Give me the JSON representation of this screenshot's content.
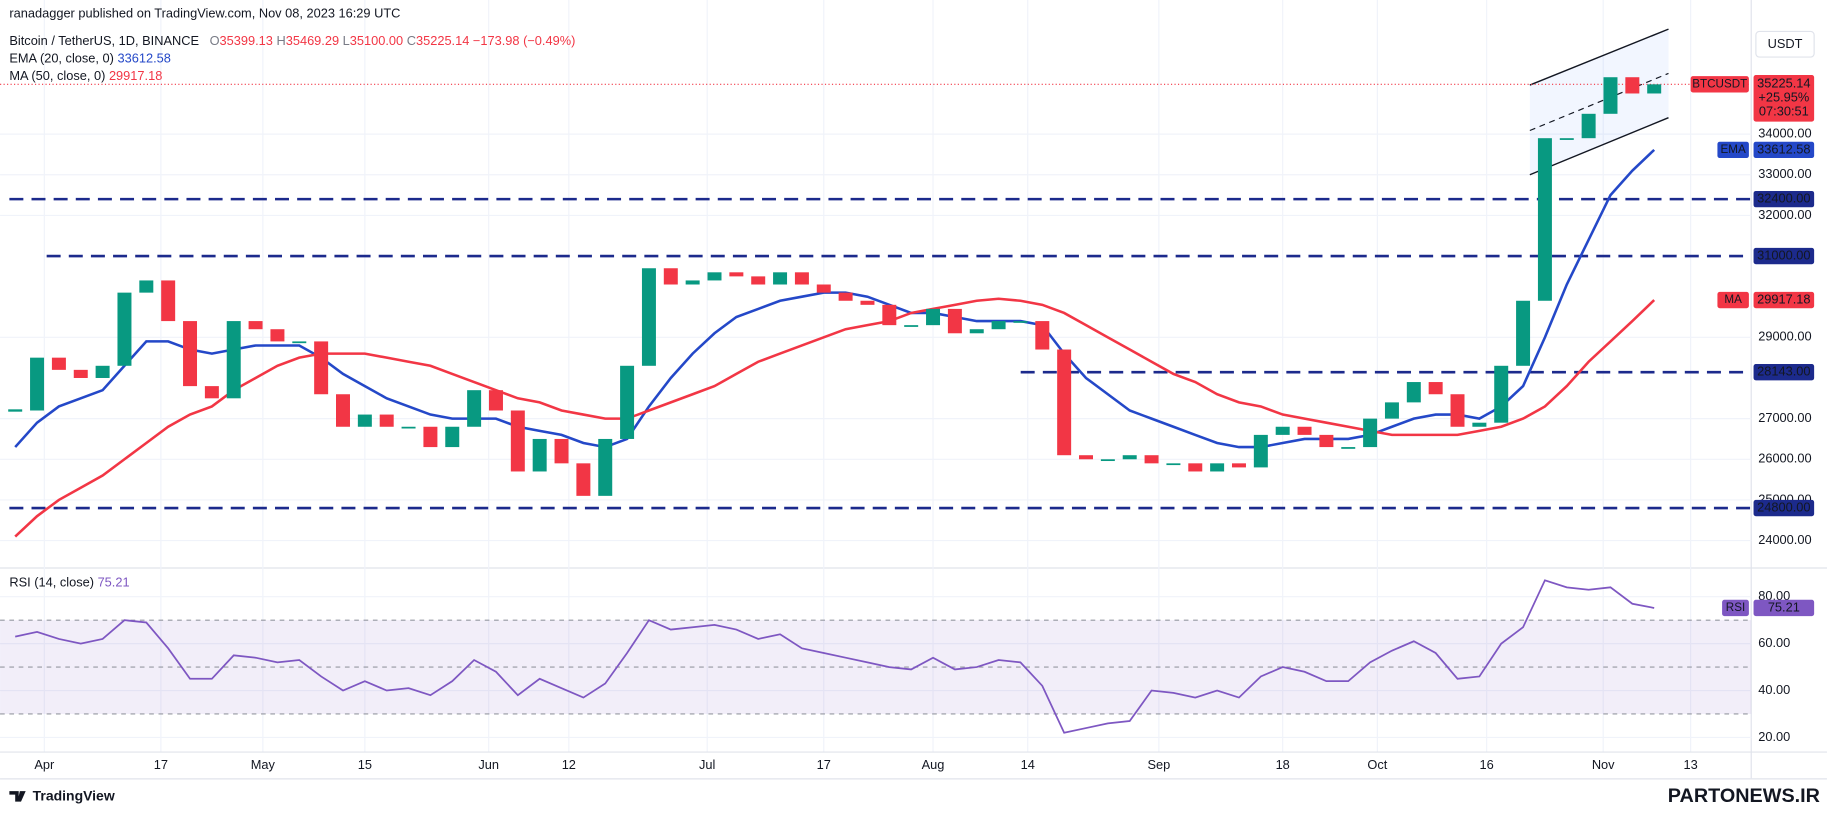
{
  "header": {
    "published": "ranadagger published on TradingView.com, Nov 08, 2023 16:29 UTC",
    "symbol": "Bitcoin / TetherUS, 1D, BINANCE",
    "ohlc": [
      {
        "key": "O",
        "text": "35399.13"
      },
      {
        "key": "H",
        "text": "35469.29"
      },
      {
        "key": "L",
        "text": "35100.00"
      },
      {
        "key": "C",
        "text": "35225.14"
      }
    ],
    "change": "−173.98 (−0.49%)"
  },
  "chart_data": [
    {
      "type": "candlestick",
      "currency": "USDT",
      "change_pct": "+25.95%",
      "countdown": "07:30:51",
      "x": [
        "Mar 28",
        "Mar 31",
        "Apr 3",
        "Apr 6",
        "Apr 9",
        "Apr 12",
        "Apr 15",
        "Apr 18",
        "Apr 21",
        "Apr 24",
        "Apr 27",
        "Apr 30",
        "May 3",
        "May 6",
        "May 9",
        "May 12",
        "May 15",
        "May 18",
        "May 21",
        "May 24",
        "May 27",
        "May 30",
        "Jun 2",
        "Jun 5",
        "Jun 8",
        "Jun 11",
        "Jun 14",
        "Jun 17",
        "Jun 20",
        "Jun 23",
        "Jun 26",
        "Jun 29",
        "Jul 2",
        "Jul 5",
        "Jul 8",
        "Jul 11",
        "Jul 14",
        "Jul 17",
        "Jul 20",
        "Jul 23",
        "Jul 26",
        "Jul 29",
        "Aug 1",
        "Aug 4",
        "Aug 7",
        "Aug 10",
        "Aug 13",
        "Aug 16",
        "Aug 19",
        "Aug 22",
        "Aug 25",
        "Aug 28",
        "Aug 31",
        "Sep 3",
        "Sep 6",
        "Sep 9",
        "Sep 12",
        "Sep 15",
        "Sep 18",
        "Sep 21",
        "Sep 24",
        "Sep 27",
        "Sep 30",
        "Oct 3",
        "Oct 6",
        "Oct 9",
        "Oct 12",
        "Oct 15",
        "Oct 18",
        "Oct 21",
        "Oct 24",
        "Oct 27",
        "Oct 30",
        "Nov 2",
        "Nov 5",
        "Nov 8"
      ],
      "xlim": [
        "Mar 27",
        "Nov 21"
      ],
      "series": [
        {
          "name": "BTCUSDT",
          "colors": {
            "up": "#089981",
            "down": "#f23645"
          },
          "values": [
            27200,
            28500,
            28200,
            28000,
            28300,
            30100,
            30400,
            29400,
            27800,
            27500,
            29400,
            29200,
            28900,
            28900,
            27600,
            26800,
            27100,
            26800,
            26800,
            26300,
            26800,
            27700,
            27200,
            25700,
            26500,
            25900,
            25100,
            26500,
            28300,
            30700,
            30300,
            30400,
            30600,
            30500,
            30300,
            30600,
            30300,
            30100,
            29900,
            29800,
            29300,
            29300,
            29700,
            29100,
            29200,
            29400,
            29400,
            28700,
            26100,
            26000,
            26000,
            26100,
            25900,
            25900,
            25700,
            25900,
            25800,
            26600,
            26800,
            26600,
            26300,
            26300,
            27000,
            27400,
            27900,
            27600,
            26800,
            26900,
            28300,
            29900,
            33900,
            33900,
            34500,
            35400,
            35000,
            35225.14
          ]
        },
        {
          "name": "EMA",
          "indicator": "EMA (20, close, 0)",
          "color": "#2448c8",
          "values": [
            26300,
            26900,
            27300,
            27500,
            27700,
            28300,
            28900,
            28900,
            28700,
            28600,
            28700,
            28800,
            28800,
            28800,
            28500,
            28100,
            27800,
            27500,
            27300,
            27100,
            27000,
            27000,
            27000,
            26800,
            26700,
            26600,
            26400,
            26300,
            26500,
            27300,
            28000,
            28600,
            29100,
            29500,
            29700,
            29900,
            30000,
            30100,
            30100,
            30000,
            29800,
            29600,
            29600,
            29500,
            29400,
            29400,
            29400,
            29300,
            28600,
            28000,
            27600,
            27200,
            27000,
            26800,
            26600,
            26400,
            26300,
            26300,
            26400,
            26500,
            26500,
            26500,
            26600,
            26800,
            27000,
            27100,
            27100,
            27000,
            27300,
            27800,
            29000,
            30300,
            31400,
            32500,
            33100,
            33612.58
          ]
        },
        {
          "name": "MA",
          "indicator": "MA (50, close, 0)",
          "color": "#f23645",
          "values": [
            24100,
            24600,
            25000,
            25300,
            25600,
            26000,
            26400,
            26800,
            27100,
            27300,
            27700,
            28000,
            28300,
            28500,
            28600,
            28600,
            28600,
            28500,
            28400,
            28300,
            28100,
            27900,
            27700,
            27500,
            27400,
            27200,
            27100,
            27000,
            27000,
            27200,
            27400,
            27600,
            27800,
            28100,
            28400,
            28600,
            28800,
            29000,
            29200,
            29300,
            29400,
            29600,
            29700,
            29800,
            29900,
            29950,
            29900,
            29800,
            29600,
            29300,
            29000,
            28700,
            28400,
            28100,
            27900,
            27600,
            27400,
            27300,
            27100,
            27000,
            26900,
            26800,
            26700,
            26600,
            26600,
            26600,
            26600,
            26700,
            26800,
            27000,
            27300,
            27800,
            28400,
            28900,
            29400,
            29917.18
          ]
        }
      ],
      "ylim": [
        23540,
        36870
      ],
      "yticks": [
        {
          "value": 24000,
          "label": "24000.00"
        },
        {
          "value": 25000,
          "label": "25000.00"
        },
        {
          "value": 26000,
          "label": "26000.00"
        },
        {
          "value": 27000,
          "label": "27000.00"
        },
        {
          "value": 29000,
          "label": "29000.00"
        },
        {
          "value": 32000,
          "label": "32000.00"
        },
        {
          "value": 33000,
          "label": "33000.00"
        },
        {
          "value": 34000,
          "label": "34000.00"
        }
      ],
      "levels": [
        {
          "value": 32400,
          "label": "32400.00"
        },
        {
          "value": 31000,
          "label": "31000.00"
        },
        {
          "value": 28143,
          "label": "28143.00"
        },
        {
          "value": 24800,
          "label": "24800.00"
        }
      ],
      "level_color": "#1c2a8c",
      "grid": true
    },
    {
      "type": "line",
      "x": [
        "Mar 28",
        "Mar 31",
        "Apr 3",
        "Apr 6",
        "Apr 9",
        "Apr 12",
        "Apr 15",
        "Apr 18",
        "Apr 21",
        "Apr 24",
        "Apr 27",
        "Apr 30",
        "May 3",
        "May 6",
        "May 9",
        "May 12",
        "May 15",
        "May 18",
        "May 21",
        "May 24",
        "May 27",
        "May 30",
        "Jun 2",
        "Jun 5",
        "Jun 8",
        "Jun 11",
        "Jun 14",
        "Jun 17",
        "Jun 20",
        "Jun 23",
        "Jun 26",
        "Jun 29",
        "Jul 2",
        "Jul 5",
        "Jul 8",
        "Jul 11",
        "Jul 14",
        "Jul 17",
        "Jul 20",
        "Jul 23",
        "Jul 26",
        "Jul 29",
        "Aug 1",
        "Aug 4",
        "Aug 7",
        "Aug 10",
        "Aug 13",
        "Aug 16",
        "Aug 19",
        "Aug 22",
        "Aug 25",
        "Aug 28",
        "Aug 31",
        "Sep 3",
        "Sep 6",
        "Sep 9",
        "Sep 12",
        "Sep 15",
        "Sep 18",
        "Sep 21",
        "Sep 24",
        "Sep 27",
        "Sep 30",
        "Oct 3",
        "Oct 6",
        "Oct 9",
        "Oct 12",
        "Oct 15",
        "Oct 18",
        "Oct 21",
        "Oct 24",
        "Oct 27",
        "Oct 30",
        "Nov 2",
        "Nov 5",
        "Nov 8"
      ],
      "xlim": [
        "Mar 27",
        "Nov 21"
      ],
      "xticks": [
        {
          "value": "Apr 1",
          "label": "Apr"
        },
        {
          "value": "Apr 17",
          "label": "17"
        },
        {
          "value": "May 1",
          "label": "May"
        },
        {
          "value": "May 15",
          "label": "15"
        },
        {
          "value": "Jun 1",
          "label": "Jun"
        },
        {
          "value": "Jun 12",
          "label": "12"
        },
        {
          "value": "Jul 1",
          "label": "Jul"
        },
        {
          "value": "Jul 17",
          "label": "17"
        },
        {
          "value": "Aug 1",
          "label": "Aug"
        },
        {
          "value": "Aug 14",
          "label": "14"
        },
        {
          "value": "Sep 1",
          "label": "Sep"
        },
        {
          "value": "Sep 18",
          "label": "18"
        },
        {
          "value": "Oct 1",
          "label": "Oct"
        },
        {
          "value": "Oct 16",
          "label": "16"
        },
        {
          "value": "Nov 1",
          "label": "Nov"
        },
        {
          "value": "Nov 13",
          "label": "13"
        }
      ],
      "series": [
        {
          "name": "RSI",
          "indicator": "RSI (14, close)",
          "color": "#7e57c2",
          "values": [
            63,
            65,
            62,
            60,
            62,
            70,
            69,
            58,
            45,
            45,
            55,
            54,
            52,
            53,
            46,
            40,
            44,
            40,
            41,
            38,
            44,
            53,
            48,
            38,
            45,
            41,
            37,
            43,
            56,
            70,
            66,
            67,
            68,
            66,
            62,
            64,
            58,
            56,
            54,
            52,
            50,
            49,
            54,
            49,
            50,
            53,
            52,
            42,
            22,
            24,
            26,
            27,
            40,
            39,
            37,
            40,
            37,
            46,
            50,
            48,
            44,
            44,
            52,
            57,
            61,
            56,
            45,
            46,
            60,
            67,
            87,
            84,
            83,
            84,
            77,
            75.21
          ]
        }
      ],
      "ylim": [
        14,
        92
      ],
      "yticks": [
        {
          "value": 20,
          "label": "20.00"
        },
        {
          "value": 40,
          "label": "40.00"
        },
        {
          "value": 60,
          "label": "60.00"
        },
        {
          "value": 80,
          "label": "80.00"
        }
      ],
      "band": [
        30,
        70
      ],
      "midline": 50
    }
  ],
  "footer": {
    "brand": "TradingView",
    "watermark": "PARTONEWS.IR"
  }
}
